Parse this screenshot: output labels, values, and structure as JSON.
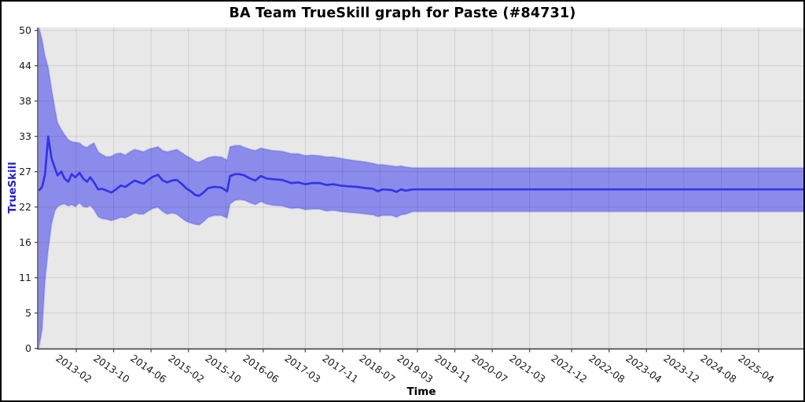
{
  "title": "BA Team TrueSkill graph for Paste (#84731)",
  "chart_data": {
    "type": "line",
    "title": "BA Team TrueSkill graph for Paste (#84731)",
    "xlabel": "Time",
    "ylabel": "TrueSkill",
    "grid": true,
    "legend": "none",
    "ylim": [
      0,
      50.5
    ],
    "ylabel_color": "#2222cc",
    "band_color": "#8b8bec",
    "band_edge_color": "rgba(70,70,210,0.25)",
    "line_color": "#3434e6",
    "plot_bg": "#e8e8e8",
    "grid_color": "rgba(0,0,0,0.10)",
    "axis_color": "#444444",
    "y_ticks": [
      {
        "value": 0,
        "label": "0"
      },
      {
        "value": 5.56,
        "label": "5"
      },
      {
        "value": 11.11,
        "label": "11"
      },
      {
        "value": 16.67,
        "label": "16"
      },
      {
        "value": 22.22,
        "label": "22"
      },
      {
        "value": 27.78,
        "label": "27"
      },
      {
        "value": 33.33,
        "label": "33"
      },
      {
        "value": 38.89,
        "label": "38"
      },
      {
        "value": 44.44,
        "label": "44"
      },
      {
        "value": 50,
        "label": "50"
      }
    ],
    "x_unit": "months since 2012-06 (estimated from plot)",
    "x_ticks": [
      {
        "m": 8,
        "label": "2013-02"
      },
      {
        "m": 16,
        "label": "2013-10"
      },
      {
        "m": 24,
        "label": "2014-06"
      },
      {
        "m": 32,
        "label": "2015-02"
      },
      {
        "m": 40,
        "label": "2015-10"
      },
      {
        "m": 48,
        "label": "2016-06"
      },
      {
        "m": 57,
        "label": "2017-03"
      },
      {
        "m": 65,
        "label": "2017-11"
      },
      {
        "m": 73,
        "label": "2018-07"
      },
      {
        "m": 81,
        "label": "2019-03"
      },
      {
        "m": 89,
        "label": "2019-11"
      },
      {
        "m": 97,
        "label": "2020-07"
      },
      {
        "m": 105,
        "label": "2021-03"
      },
      {
        "m": 114,
        "label": "2021-12"
      },
      {
        "m": 122,
        "label": "2022-08"
      },
      {
        "m": 130,
        "label": "2023-04"
      },
      {
        "m": 138,
        "label": "2023-12"
      },
      {
        "m": 146,
        "label": "2024-08"
      },
      {
        "m": 154,
        "label": "2025-04"
      }
    ],
    "series": [
      {
        "name": "TrueSkill mean with uncertainty band",
        "point_format": [
          "months_since_2012-06",
          "mean",
          "band_low",
          "band_high"
        ],
        "points": [
          [
            0,
            24.8,
            0,
            50.5
          ],
          [
            0.7,
            25.4,
            3,
            48.5
          ],
          [
            1.3,
            27.3,
            10.5,
            46
          ],
          [
            2,
            33.3,
            15.5,
            44.2
          ],
          [
            2.7,
            29.9,
            19.5,
            40.8
          ],
          [
            3.4,
            28.4,
            21.6,
            37.8
          ],
          [
            4,
            27.2,
            22.3,
            35.5
          ],
          [
            4.8,
            27.8,
            22.6,
            34.4
          ],
          [
            5.5,
            26.7,
            22.7,
            33.6
          ],
          [
            6.3,
            26.2,
            22.4,
            32.8
          ],
          [
            7,
            27.4,
            22.6,
            32.5
          ],
          [
            7.8,
            26.9,
            22.3,
            32.4
          ],
          [
            8.7,
            27.6,
            22.9,
            32.3
          ],
          [
            9.5,
            26.7,
            22.3,
            31.8
          ],
          [
            10.3,
            26.2,
            22.2,
            31.6
          ],
          [
            11,
            26.9,
            22.5,
            32.0
          ],
          [
            11.8,
            26.1,
            21.8,
            32.3
          ],
          [
            12.7,
            25.0,
            20.7,
            30.9
          ],
          [
            13.5,
            25.1,
            20.4,
            30.5
          ],
          [
            14.5,
            24.8,
            20.3,
            30.1
          ],
          [
            15.5,
            24.5,
            20.1,
            30.2
          ],
          [
            16.5,
            25.0,
            20.3,
            30.6
          ],
          [
            17.5,
            25.6,
            20.6,
            30.7
          ],
          [
            18.5,
            25.4,
            20.5,
            30.4
          ],
          [
            19.5,
            25.9,
            20.9,
            30.9
          ],
          [
            20.5,
            26.4,
            21.3,
            31.3
          ],
          [
            21.5,
            26.1,
            21.1,
            31.1
          ],
          [
            22.4,
            25.9,
            21.1,
            30.9
          ],
          [
            23.4,
            26.5,
            21.6,
            31.3
          ],
          [
            24.4,
            27.0,
            22.0,
            31.5
          ],
          [
            25.5,
            27.3,
            22.2,
            31.7
          ],
          [
            26.5,
            26.4,
            21.5,
            31.1
          ],
          [
            27.5,
            26.1,
            21.1,
            30.9
          ],
          [
            28.5,
            26.4,
            21.3,
            31.1
          ],
          [
            29.5,
            26.5,
            21.1,
            31.3
          ],
          [
            30.5,
            25.9,
            20.5,
            30.8
          ],
          [
            31.5,
            25.2,
            20.0,
            30.3
          ],
          [
            32.5,
            24.7,
            19.7,
            29.9
          ],
          [
            33.5,
            24.1,
            19.5,
            29.4
          ],
          [
            34.3,
            24.0,
            19.4,
            29.3
          ],
          [
            35.2,
            24.5,
            19.9,
            29.6
          ],
          [
            36.2,
            25.2,
            20.6,
            30.0
          ],
          [
            37.5,
            25.4,
            20.9,
            30.2
          ],
          [
            39,
            25.3,
            20.9,
            30.1
          ],
          [
            40.3,
            24.7,
            20.5,
            29.6
          ],
          [
            40.9,
            27.1,
            22.7,
            31.7
          ],
          [
            42,
            27.4,
            23.3,
            31.9
          ],
          [
            43,
            27.4,
            23.4,
            31.9
          ],
          [
            44,
            27.2,
            23.3,
            31.6
          ],
          [
            45.2,
            26.7,
            22.9,
            31.3
          ],
          [
            46.3,
            26.4,
            22.6,
            31.1
          ],
          [
            47.5,
            27.1,
            23.1,
            31.5
          ],
          [
            48.7,
            26.7,
            22.7,
            31.3
          ],
          [
            50,
            26.6,
            22.5,
            31.1
          ],
          [
            52,
            26.5,
            22.4,
            31.0
          ],
          [
            54,
            26.0,
            22.0,
            30.6
          ],
          [
            55.5,
            26.1,
            22.1,
            30.6
          ],
          [
            57,
            25.8,
            21.8,
            30.3
          ],
          [
            58.5,
            26.0,
            21.9,
            30.4
          ],
          [
            60,
            26.0,
            21.9,
            30.3
          ],
          [
            61.5,
            25.7,
            21.6,
            30.1
          ],
          [
            63,
            25.8,
            21.7,
            30.1
          ],
          [
            64.5,
            25.6,
            21.5,
            29.9
          ],
          [
            66,
            25.5,
            21.4,
            29.7
          ],
          [
            68,
            25.4,
            21.3,
            29.5
          ],
          [
            70,
            25.2,
            21.1,
            29.3
          ],
          [
            71.5,
            25.1,
            21.0,
            29.1
          ],
          [
            72.5,
            24.7,
            20.7,
            28.9
          ],
          [
            73.5,
            25.0,
            20.9,
            28.9
          ],
          [
            75.5,
            24.9,
            20.9,
            28.7
          ],
          [
            76.5,
            24.6,
            20.6,
            28.6
          ],
          [
            77.5,
            25.0,
            21.0,
            28.7
          ],
          [
            78.5,
            24.8,
            21.1,
            28.5
          ],
          [
            80,
            25.0,
            21.5,
            28.4
          ],
          [
            164,
            25.0,
            21.5,
            28.4
          ]
        ]
      }
    ]
  }
}
